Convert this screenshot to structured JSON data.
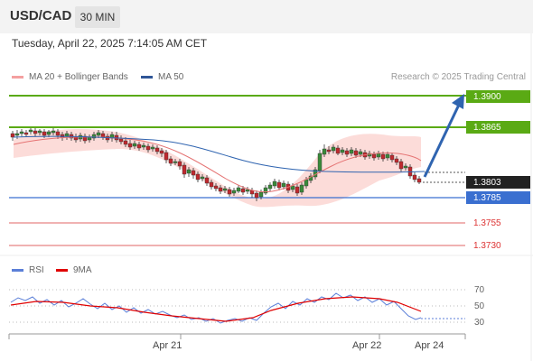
{
  "header": {
    "pair": "USD/CAD",
    "timeframe": "30 MIN"
  },
  "datetime": "Tuesday, April 22, 2025 7:14:05 AM CET",
  "legend": {
    "ma20_label": "MA 20 + Bollinger Bands",
    "ma50_label": "MA 50",
    "credit": "Research © 2025 Trading Central"
  },
  "levels": {
    "r2": "1.3900",
    "r1": "1.3865",
    "last": "1.3803",
    "pivot": "1.3785",
    "s1": "1.3755",
    "s2": "1.3730"
  },
  "rsi_legend": {
    "rsi_label": "RSI",
    "ma_label": "9MA"
  },
  "rsi_axis": [
    "70",
    "50",
    "30"
  ],
  "x_axis": [
    "Apr 21",
    "Apr 22",
    "Apr 24"
  ],
  "colors": {
    "up": "#3a8a3a",
    "down": "#c0282e",
    "resistance": "#5aaa14",
    "pivot": "#3a6fd0",
    "support": "#e06666",
    "arrow": "#2f64b0",
    "ma20": "#e57373",
    "ma50": "#2f64b0",
    "rsi": "#5b7fd8",
    "rsi_ma": "#e00000"
  }
}
